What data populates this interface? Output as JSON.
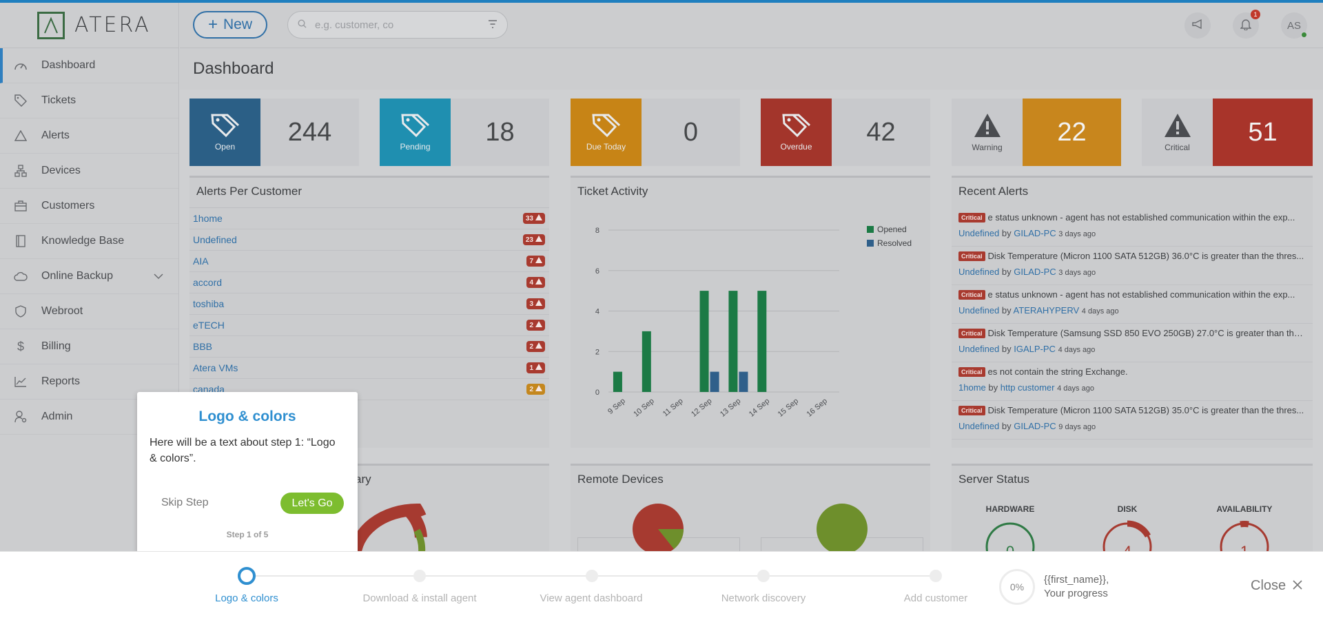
{
  "app": {
    "brand": "ATERA"
  },
  "header": {
    "new_label": "New",
    "search_placeholder": "e.g. customer, co",
    "notif_count": "1",
    "avatar_initials": "AS"
  },
  "sidebar": {
    "items": [
      {
        "label": "Dashboard",
        "icon": "dashboard-icon"
      },
      {
        "label": "Tickets",
        "icon": "tag-icon"
      },
      {
        "label": "Alerts",
        "icon": "warning-icon"
      },
      {
        "label": "Devices",
        "icon": "devices-icon"
      },
      {
        "label": "Customers",
        "icon": "briefcase-icon"
      },
      {
        "label": "Knowledge Base",
        "icon": "book-icon"
      },
      {
        "label": "Online Backup",
        "icon": "cloud-icon"
      },
      {
        "label": "Webroot",
        "icon": "shield-icon"
      },
      {
        "label": "Billing",
        "icon": "dollar-icon"
      },
      {
        "label": "Reports",
        "icon": "chart-icon"
      },
      {
        "label": "Admin",
        "icon": "admin-icon"
      }
    ]
  },
  "page": {
    "title": "Dashboard"
  },
  "tiles": [
    {
      "label": "Open",
      "value": "244",
      "color": "#2b5f86"
    },
    {
      "label": "Pending",
      "value": "18",
      "color": "#1f8fb0"
    },
    {
      "label": "Due Today",
      "value": "0",
      "color": "#c78416"
    },
    {
      "label": "Overdue",
      "value": "42",
      "color": "#a3352b"
    },
    {
      "label": "Warning",
      "value": "22",
      "color": "#c8861d"
    },
    {
      "label": "Critical",
      "value": "51",
      "color": "#a8342a"
    }
  ],
  "alerts_per_customer": {
    "title": "Alerts Per Customer",
    "rows": [
      {
        "name": "1home",
        "count": "33",
        "level": "critical"
      },
      {
        "name": "Undefined",
        "count": "23",
        "level": "critical"
      },
      {
        "name": "AIA",
        "count": "7",
        "level": "critical"
      },
      {
        "name": "accord",
        "count": "4",
        "level": "critical"
      },
      {
        "name": "toshiba",
        "count": "3",
        "level": "critical"
      },
      {
        "name": "eTECH",
        "count": "2",
        "level": "critical"
      },
      {
        "name": "BBB",
        "count": "2",
        "level": "critical"
      },
      {
        "name": "Atera VMs",
        "count": "1",
        "level": "critical"
      },
      {
        "name": "canada",
        "count": "2",
        "level": "warning"
      }
    ]
  },
  "ticket_activity": {
    "title": "Ticket Activity"
  },
  "chart_data": {
    "type": "bar",
    "categories": [
      "9 Sep",
      "10 Sep",
      "11 Sep",
      "12 Sep",
      "13 Sep",
      "14 Sep",
      "15 Sep",
      "16 Sep"
    ],
    "series": [
      {
        "name": "Opened",
        "values": [
          1,
          3,
          0,
          5,
          5,
          5,
          0,
          0
        ],
        "color": "#1b7a45"
      },
      {
        "name": "Resolved",
        "values": [
          0,
          0,
          0,
          1,
          1,
          0,
          0,
          0
        ],
        "color": "#2f5f8a"
      }
    ],
    "yticks": [
      "0",
      "2",
      "4",
      "6",
      "8"
    ],
    "ylim": [
      0,
      8
    ],
    "legend": "top-right",
    "grid": true
  },
  "recent_alerts": {
    "title": "Recent Alerts",
    "items": [
      {
        "badge": "Critical",
        "text": "e status unknown - agent has not established communication within the exp...",
        "customer": "Undefined",
        "by": "by",
        "device": "GILAD-PC",
        "ago": "3 days ago"
      },
      {
        "badge": "Critical",
        "text": "Disk Temperature (Micron 1100 SATA 512GB) 36.0°C is greater than the thres...",
        "customer": "Undefined",
        "by": "by",
        "device": "GILAD-PC",
        "ago": "3 days ago"
      },
      {
        "badge": "Critical",
        "text": "e status unknown - agent has not established communication within the exp...",
        "customer": "Undefined",
        "by": "by",
        "device": "ATERAHYPERV",
        "ago": "4 days ago"
      },
      {
        "badge": "Critical",
        "text": "Disk Temperature (Samsung SSD 850 EVO 250GB) 27.0°C is greater than the t...",
        "customer": "Undefined",
        "by": "by",
        "device": "IGALP-PC",
        "ago": "4 days ago"
      },
      {
        "badge": "Critical",
        "text": "es not contain the string Exchange.",
        "customer": "1home",
        "by": "by",
        "device": "http customer",
        "ago": "4 days ago"
      },
      {
        "badge": "Critical",
        "text": "Disk Temperature (Micron 1100 SATA 512GB) 35.0°C is greater than the thres...",
        "customer": "Undefined",
        "by": "by",
        "device": "GILAD-PC",
        "ago": "9 days ago"
      }
    ]
  },
  "lower_panels": {
    "summary_title_fragment": "ary",
    "remote_devices_title": "Remote Devices",
    "server_status_title": "Server Status",
    "gauges": [
      {
        "label": "HARDWARE",
        "value": "0"
      },
      {
        "label": "DISK",
        "value": "4"
      },
      {
        "label": "AVAILABILITY",
        "value": "1"
      }
    ]
  },
  "tour": {
    "title": "Logo & colors",
    "text": "Here will be a text about step 1: “Logo & colors”.",
    "skip_label": "Skip Step",
    "go_label": "Let's Go",
    "step_label": "Step 1 of 5",
    "steps": [
      {
        "label": "Logo & colors"
      },
      {
        "label": "Download & install agent"
      },
      {
        "label": "View agent dashboard"
      },
      {
        "label": "Network discovery"
      },
      {
        "label": "Add customer"
      }
    ],
    "progress_percent": "0%",
    "progress_name": "{{first_name}},",
    "progress_caption": "Your progress",
    "close_label": "Close"
  }
}
